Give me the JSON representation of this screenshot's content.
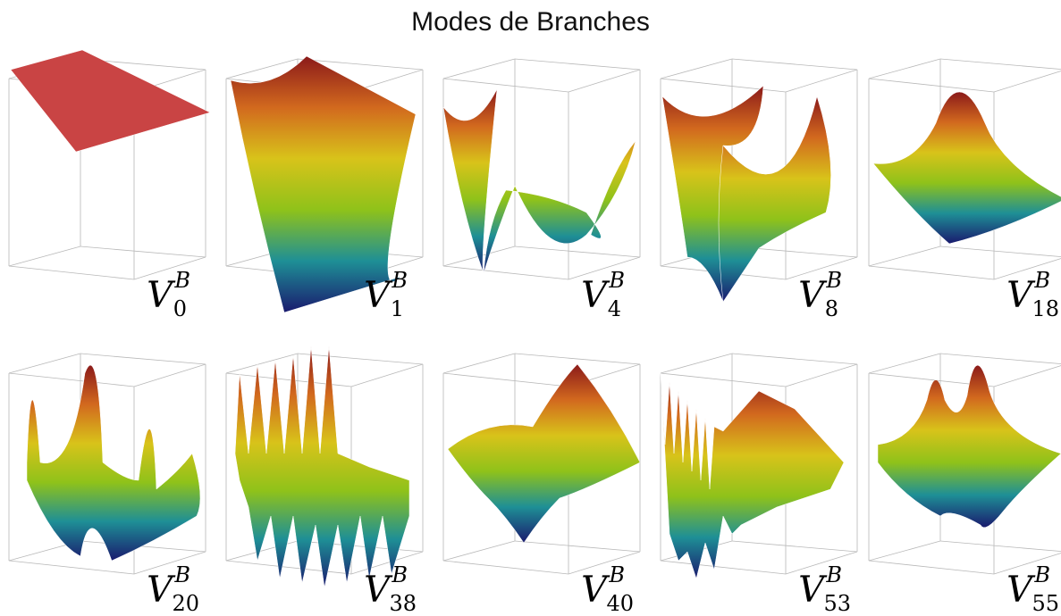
{
  "title": "Modes de Branches",
  "label_symbol": "V",
  "label_superscript": "B",
  "colormap": [
    "#1a1a6e",
    "#1e8f96",
    "#8fc21a",
    "#d8c31a",
    "#d2691e",
    "#8b1a1a"
  ],
  "modes": [
    {
      "index": "0",
      "kind": "flat"
    },
    {
      "index": "1",
      "kind": "ramp"
    },
    {
      "index": "4",
      "kind": "saddle"
    },
    {
      "index": "8",
      "kind": "double-saddle"
    },
    {
      "index": "18",
      "kind": "dome"
    },
    {
      "index": "20",
      "kind": "edge-peaks"
    },
    {
      "index": "38",
      "kind": "dense-peaks"
    },
    {
      "index": "40",
      "kind": "hill-valley"
    },
    {
      "index": "53",
      "kind": "fine-edge"
    },
    {
      "index": "55",
      "kind": "twin-peaks"
    }
  ]
}
